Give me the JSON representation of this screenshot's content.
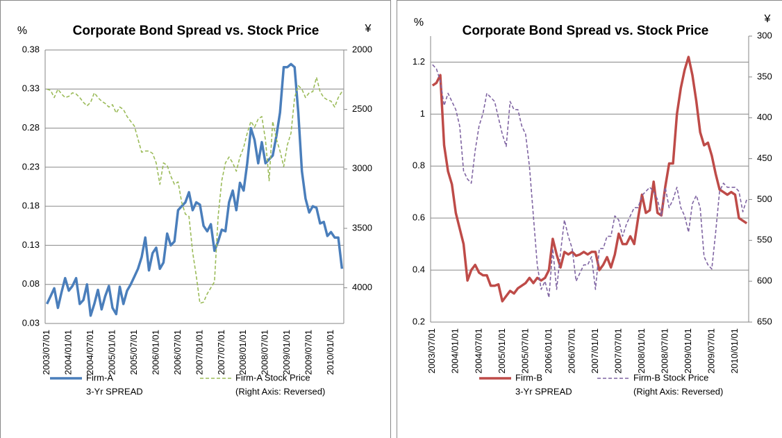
{
  "chart_data": [
    {
      "type": "line",
      "title": "Corporate Bond Spread vs. Stock Price",
      "y_unit": "%",
      "y2_unit": "¥",
      "categories": [
        "2003/07/01",
        null,
        null,
        null,
        null,
        null,
        "2004/01/01",
        null,
        null,
        null,
        null,
        null,
        "2004/07/01",
        null,
        null,
        null,
        null,
        null,
        "2005/01/01",
        null,
        null,
        null,
        null,
        null,
        "2005/07/01",
        null,
        null,
        null,
        null,
        null,
        "2006/01/01",
        null,
        null,
        null,
        null,
        null,
        "2006/07/01",
        null,
        null,
        null,
        null,
        null,
        "2007/01/01",
        null,
        null,
        null,
        null,
        null,
        "2007/07/01",
        null,
        null,
        null,
        null,
        null,
        "2008/01/01",
        null,
        null,
        null,
        null,
        null,
        "2008/07/01",
        null,
        null,
        null,
        null,
        null,
        "2009/01/01",
        null,
        null,
        null,
        null,
        null,
        "2009/07/01",
        null,
        null,
        null,
        null,
        null,
        "2010/01/01",
        null,
        null,
        null
      ],
      "ylim": [
        0.03,
        0.38
      ],
      "yticks": [
        0.03,
        0.08,
        0.13,
        0.18,
        0.23,
        0.28,
        0.33,
        0.38
      ],
      "y2lim": [
        4300,
        2000
      ],
      "y2ticks": [
        2000,
        2500,
        3000,
        3500,
        4000
      ],
      "grid": true,
      "series": [
        {
          "name": [
            "Firm-A",
            "3-Yr SPREAD"
          ],
          "color": "#4a7ebb",
          "line_style": "solid",
          "values": [
            0.055,
            0.065,
            0.075,
            0.05,
            0.07,
            0.088,
            0.072,
            0.078,
            0.088,
            0.055,
            0.06,
            0.08,
            0.04,
            0.055,
            0.073,
            0.048,
            0.065,
            0.078,
            0.05,
            0.042,
            0.077,
            0.055,
            0.072,
            0.08,
            0.09,
            0.1,
            0.115,
            0.14,
            0.098,
            0.12,
            0.127,
            0.1,
            0.108,
            0.145,
            0.13,
            0.135,
            0.175,
            0.18,
            0.185,
            0.198,
            0.175,
            0.185,
            0.182,
            0.155,
            0.148,
            0.157,
            0.123,
            0.135,
            0.15,
            0.148,
            0.185,
            0.2,
            0.175,
            0.21,
            0.2,
            0.235,
            0.28,
            0.265,
            0.235,
            0.262,
            0.235,
            0.24,
            0.245,
            0.27,
            0.3,
            0.358,
            0.358,
            0.362,
            0.358,
            0.3,
            0.225,
            0.19,
            0.172,
            0.18,
            0.178,
            0.158,
            0.16,
            0.142,
            0.147,
            0.14,
            0.14,
            0.1
          ]
        },
        {
          "name": [
            "Firm-A Stock Price",
            "(Right Axis: Reversed)"
          ],
          "color": "#9bbb59",
          "line_style": "dashed",
          "axis": "y2",
          "values": [
            2330,
            2340,
            2400,
            2330,
            2370,
            2400,
            2390,
            2360,
            2370,
            2400,
            2440,
            2470,
            2440,
            2360,
            2400,
            2430,
            2450,
            2480,
            2460,
            2530,
            2480,
            2500,
            2560,
            2600,
            2640,
            2750,
            2860,
            2850,
            2850,
            2870,
            2950,
            3130,
            2950,
            2970,
            3060,
            3130,
            3110,
            3280,
            3380,
            3400,
            3700,
            3900,
            4130,
            4120,
            4050,
            4000,
            3950,
            3400,
            3100,
            2950,
            2900,
            2950,
            3020,
            2900,
            2820,
            2700,
            2600,
            2650,
            2580,
            2560,
            2760,
            3100,
            2600,
            2750,
            2850,
            2980,
            2800,
            2700,
            2400,
            2300,
            2330,
            2400,
            2360,
            2350,
            2230,
            2350,
            2400,
            2420,
            2430,
            2480,
            2400,
            2350
          ]
        }
      ]
    },
    {
      "type": "line",
      "title": "Corporate Bond Spread vs. Stock Price",
      "y_unit": "%",
      "y2_unit": "¥",
      "categories": [
        "2003/07/01",
        null,
        null,
        null,
        null,
        null,
        "2004/01/01",
        null,
        null,
        null,
        null,
        null,
        "2004/07/01",
        null,
        null,
        null,
        null,
        null,
        "2005/01/01",
        null,
        null,
        null,
        null,
        null,
        "2005/07/01",
        null,
        null,
        null,
        null,
        null,
        "2006/01/01",
        null,
        null,
        null,
        null,
        null,
        "2006/07/01",
        null,
        null,
        null,
        null,
        null,
        "2007/01/01",
        null,
        null,
        null,
        null,
        null,
        "2007/07/01",
        null,
        null,
        null,
        null,
        null,
        "2008/01/01",
        null,
        null,
        null,
        null,
        null,
        "2008/07/01",
        null,
        null,
        null,
        null,
        null,
        "2009/01/01",
        null,
        null,
        null,
        null,
        null,
        "2009/07/01",
        null,
        null,
        null,
        null,
        null,
        "2010/01/01",
        null,
        null,
        null
      ],
      "ylim": [
        0.2,
        1.3
      ],
      "yticks": [
        0.2,
        0.4,
        0.6,
        0.8,
        1,
        1.2
      ],
      "y2lim": [
        650,
        300
      ],
      "y2ticks": [
        300,
        350,
        400,
        450,
        500,
        550,
        600,
        650
      ],
      "grid": true,
      "series": [
        {
          "name": [
            "Firm-B",
            "3-Yr SPREAD"
          ],
          "color": "#be4b48",
          "line_style": "solid",
          "values": [
            1.11,
            1.12,
            1.15,
            0.88,
            0.78,
            0.73,
            0.62,
            0.56,
            0.5,
            0.36,
            0.4,
            0.42,
            0.39,
            0.38,
            0.38,
            0.34,
            0.34,
            0.345,
            0.28,
            0.3,
            0.32,
            0.31,
            0.33,
            0.34,
            0.35,
            0.37,
            0.35,
            0.37,
            0.36,
            0.37,
            0.4,
            0.52,
            0.46,
            0.41,
            0.47,
            0.46,
            0.47,
            0.455,
            0.46,
            0.47,
            0.46,
            0.47,
            0.47,
            0.4,
            0.42,
            0.45,
            0.41,
            0.46,
            0.54,
            0.5,
            0.5,
            0.53,
            0.5,
            0.6,
            0.69,
            0.62,
            0.63,
            0.74,
            0.62,
            0.61,
            0.72,
            0.81,
            0.81,
            1.0,
            1.1,
            1.17,
            1.22,
            1.15,
            1.05,
            0.93,
            0.88,
            0.89,
            0.84,
            0.77,
            0.71,
            0.7,
            0.69,
            0.7,
            0.69,
            0.6,
            0.59,
            0.58
          ]
        },
        {
          "name": [
            "Firm-B Stock Price",
            "(Right Axis: Reversed)"
          ],
          "color": "#7f64a2",
          "line_style": "dashed",
          "axis": "y2",
          "values": [
            335,
            340,
            355,
            385,
            370,
            380,
            390,
            410,
            465,
            475,
            480,
            440,
            410,
            395,
            370,
            375,
            380,
            400,
            420,
            435,
            380,
            390,
            390,
            410,
            420,
            460,
            520,
            580,
            610,
            600,
            620,
            560,
            610,
            565,
            525,
            545,
            560,
            600,
            590,
            580,
            580,
            570,
            610,
            560,
            560,
            545,
            545,
            520,
            525,
            545,
            530,
            520,
            510,
            510,
            495,
            490,
            485,
            490,
            500,
            520,
            485,
            510,
            500,
            485,
            510,
            520,
            540,
            505,
            495,
            510,
            570,
            580,
            585,
            540,
            490,
            480,
            485,
            485,
            485,
            490,
            515,
            500
          ]
        }
      ]
    }
  ]
}
